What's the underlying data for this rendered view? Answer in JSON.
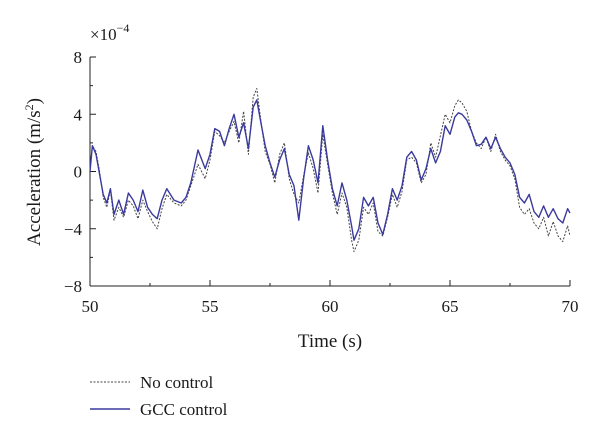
{
  "chart_data": {
    "type": "line",
    "title": "",
    "xlabel": "Time (s)",
    "ylabel": "Acceleration (m/s²)",
    "ylabel_main": "Acceleration (m/s",
    "ylabel_sup": "2",
    "ylabel_end": ")",
    "multiplier_base": "×10",
    "multiplier_exp": "−4",
    "xlim": [
      50,
      70
    ],
    "ylim": [
      -8,
      8
    ],
    "x_ticks": [
      50,
      55,
      60,
      65,
      70
    ],
    "x_tick_labels": [
      "50",
      "55",
      "60",
      "65",
      "70"
    ],
    "y_ticks": [
      -8,
      -4,
      0,
      4,
      8
    ],
    "y_tick_labels": [
      "−8",
      "−4",
      "0",
      "4",
      "8"
    ],
    "grid": false,
    "legend_position": "bottom-left, below plot",
    "colors": {
      "no_control": "#444444",
      "gcc_control": "#3a3a9e"
    },
    "series": [
      {
        "name": "No control",
        "style": "dotted",
        "x": [
          50.0,
          50.1,
          50.25,
          50.4,
          50.55,
          50.7,
          50.85,
          51.0,
          51.2,
          51.4,
          51.6,
          51.8,
          52.0,
          52.2,
          52.4,
          52.6,
          52.8,
          53.0,
          53.2,
          53.5,
          53.8,
          54.0,
          54.2,
          54.5,
          54.8,
          55.0,
          55.2,
          55.4,
          55.6,
          55.8,
          56.0,
          56.2,
          56.4,
          56.6,
          56.8,
          56.95,
          57.1,
          57.3,
          57.5,
          57.7,
          57.9,
          58.1,
          58.3,
          58.5,
          58.7,
          58.9,
          59.1,
          59.3,
          59.5,
          59.7,
          59.9,
          60.1,
          60.3,
          60.5,
          60.7,
          60.9,
          61.0,
          61.2,
          61.4,
          61.6,
          61.8,
          62.0,
          62.2,
          62.4,
          62.6,
          62.8,
          63.0,
          63.2,
          63.4,
          63.6,
          63.8,
          64.0,
          64.2,
          64.4,
          64.6,
          64.8,
          65.0,
          65.2,
          65.35,
          65.5,
          65.7,
          65.9,
          66.1,
          66.3,
          66.5,
          66.7,
          66.9,
          67.1,
          67.3,
          67.5,
          67.7,
          67.9,
          68.1,
          68.3,
          68.5,
          68.7,
          68.9,
          69.1,
          69.3,
          69.5,
          69.7,
          69.9,
          70.0
        ],
        "y": [
          0.2,
          1.8,
          1.4,
          0.0,
          -1.8,
          -2.5,
          -1.3,
          -3.4,
          -2.5,
          -3.2,
          -2.0,
          -2.4,
          -3.3,
          -2.0,
          -2.8,
          -3.5,
          -4.0,
          -2.6,
          -1.6,
          -2.2,
          -2.4,
          -2.0,
          -1.0,
          0.5,
          -0.5,
          0.8,
          2.8,
          2.5,
          2.0,
          2.8,
          3.5,
          2.0,
          4.2,
          1.2,
          5.2,
          5.8,
          3.8,
          1.4,
          0.5,
          -0.8,
          1.2,
          2.0,
          -0.5,
          -1.6,
          -2.2,
          -0.3,
          1.3,
          0.2,
          -1.5,
          2.6,
          0.5,
          -1.5,
          -3.0,
          -1.5,
          -2.5,
          -4.8,
          -5.6,
          -4.8,
          -2.5,
          -3.0,
          -2.2,
          -4.2,
          -4.5,
          -3.2,
          -1.6,
          -2.5,
          -1.4,
          0.8,
          1.0,
          0.6,
          -0.8,
          -0.2,
          2.0,
          1.0,
          2.5,
          4.0,
          3.4,
          4.6,
          5.0,
          4.8,
          4.2,
          2.8,
          2.0,
          1.6,
          2.4,
          1.4,
          2.6,
          1.4,
          0.8,
          0.4,
          -0.5,
          -2.5,
          -3.0,
          -2.6,
          -3.6,
          -4.0,
          -3.2,
          -4.5,
          -3.5,
          -4.5,
          -4.9,
          -3.8,
          -4.5
        ]
      },
      {
        "name": "GCC control",
        "style": "solid",
        "x": [
          50.0,
          50.1,
          50.25,
          50.4,
          50.55,
          50.7,
          50.85,
          51.0,
          51.2,
          51.4,
          51.6,
          51.8,
          52.0,
          52.2,
          52.4,
          52.6,
          52.8,
          53.0,
          53.2,
          53.5,
          53.8,
          54.0,
          54.2,
          54.5,
          54.8,
          55.0,
          55.2,
          55.4,
          55.6,
          55.8,
          56.0,
          56.2,
          56.4,
          56.6,
          56.8,
          56.95,
          57.1,
          57.3,
          57.5,
          57.7,
          57.9,
          58.1,
          58.3,
          58.5,
          58.7,
          58.9,
          59.1,
          59.3,
          59.5,
          59.7,
          59.9,
          60.1,
          60.3,
          60.5,
          60.7,
          60.9,
          61.0,
          61.2,
          61.4,
          61.6,
          61.8,
          62.0,
          62.2,
          62.4,
          62.6,
          62.8,
          63.0,
          63.2,
          63.4,
          63.6,
          63.8,
          64.0,
          64.2,
          64.4,
          64.6,
          64.8,
          65.0,
          65.2,
          65.35,
          65.5,
          65.7,
          65.9,
          66.1,
          66.3,
          66.5,
          66.7,
          66.9,
          67.1,
          67.3,
          67.5,
          67.7,
          67.9,
          68.1,
          68.3,
          68.5,
          68.7,
          68.9,
          69.1,
          69.3,
          69.5,
          69.7,
          69.9,
          70.0
        ],
        "y": [
          0.0,
          1.8,
          1.2,
          -0.2,
          -1.6,
          -2.2,
          -1.2,
          -3.0,
          -2.0,
          -3.0,
          -1.5,
          -2.0,
          -2.8,
          -1.3,
          -2.5,
          -3.0,
          -3.3,
          -2.0,
          -1.2,
          -2.0,
          -2.2,
          -1.8,
          -0.8,
          1.5,
          0.2,
          1.2,
          3.0,
          2.8,
          1.8,
          3.0,
          4.0,
          2.4,
          3.4,
          1.6,
          4.5,
          5.0,
          3.6,
          1.8,
          0.6,
          -0.4,
          0.8,
          1.6,
          -0.2,
          -1.0,
          -3.4,
          -0.5,
          1.8,
          0.8,
          -0.8,
          3.2,
          0.8,
          -1.2,
          -2.4,
          -0.8,
          -2.0,
          -3.8,
          -4.8,
          -4.0,
          -1.8,
          -2.4,
          -1.8,
          -3.6,
          -4.4,
          -3.0,
          -1.2,
          -2.0,
          -1.0,
          1.0,
          1.4,
          0.8,
          -0.6,
          0.2,
          1.6,
          0.6,
          1.4,
          3.2,
          2.6,
          3.8,
          4.1,
          4.0,
          3.6,
          2.8,
          1.8,
          1.9,
          2.4,
          1.6,
          2.4,
          1.6,
          1.0,
          0.6,
          -0.2,
          -1.8,
          -2.2,
          -1.6,
          -2.8,
          -3.2,
          -2.4,
          -3.2,
          -2.6,
          -3.3,
          -3.6,
          -2.6,
          -2.9
        ]
      }
    ]
  }
}
